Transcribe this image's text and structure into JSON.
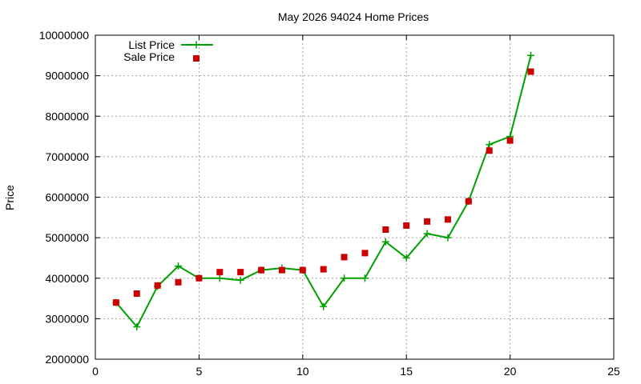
{
  "chart_data": {
    "type": "line",
    "title": "May 2026 94024 Home Prices",
    "xlabel": "",
    "ylabel": "Price",
    "xlim": [
      0,
      25
    ],
    "ylim": [
      2000000,
      10000000
    ],
    "x_ticks": [
      "0",
      "5",
      "10",
      "15",
      "20",
      "25"
    ],
    "y_ticks": [
      "2000000",
      "3000000",
      "4000000",
      "5000000",
      "6000000",
      "7000000",
      "8000000",
      "9000000",
      "10000000"
    ],
    "grid": true,
    "legend_position": "top-left",
    "series": [
      {
        "name": "List Price",
        "style": "line-with-plus-markers",
        "color": "#00a000",
        "x": [
          1,
          2,
          3,
          4,
          5,
          6,
          7,
          8,
          9,
          10,
          11,
          12,
          13,
          14,
          15,
          16,
          17,
          18,
          19,
          20,
          21
        ],
        "y": [
          3400000,
          2800000,
          3800000,
          4300000,
          4000000,
          4000000,
          3950000,
          4200000,
          4250000,
          4200000,
          3300000,
          4000000,
          4000000,
          4900000,
          4500000,
          5100000,
          5000000,
          5900000,
          7300000,
          7500000,
          9500000
        ]
      },
      {
        "name": "Sale Price",
        "style": "square-markers",
        "color": "#cc0000",
        "x": [
          1,
          2,
          3,
          4,
          5,
          6,
          7,
          8,
          9,
          10,
          11,
          12,
          13,
          14,
          15,
          16,
          17,
          18,
          19,
          20,
          21
        ],
        "y": [
          3400000,
          3620000,
          3820000,
          3900000,
          4000000,
          4150000,
          4150000,
          4200000,
          4200000,
          4200000,
          4220000,
          4520000,
          4620000,
          5200000,
          5300000,
          5400000,
          5450000,
          5900000,
          7150000,
          7400000,
          9100000
        ]
      }
    ]
  }
}
